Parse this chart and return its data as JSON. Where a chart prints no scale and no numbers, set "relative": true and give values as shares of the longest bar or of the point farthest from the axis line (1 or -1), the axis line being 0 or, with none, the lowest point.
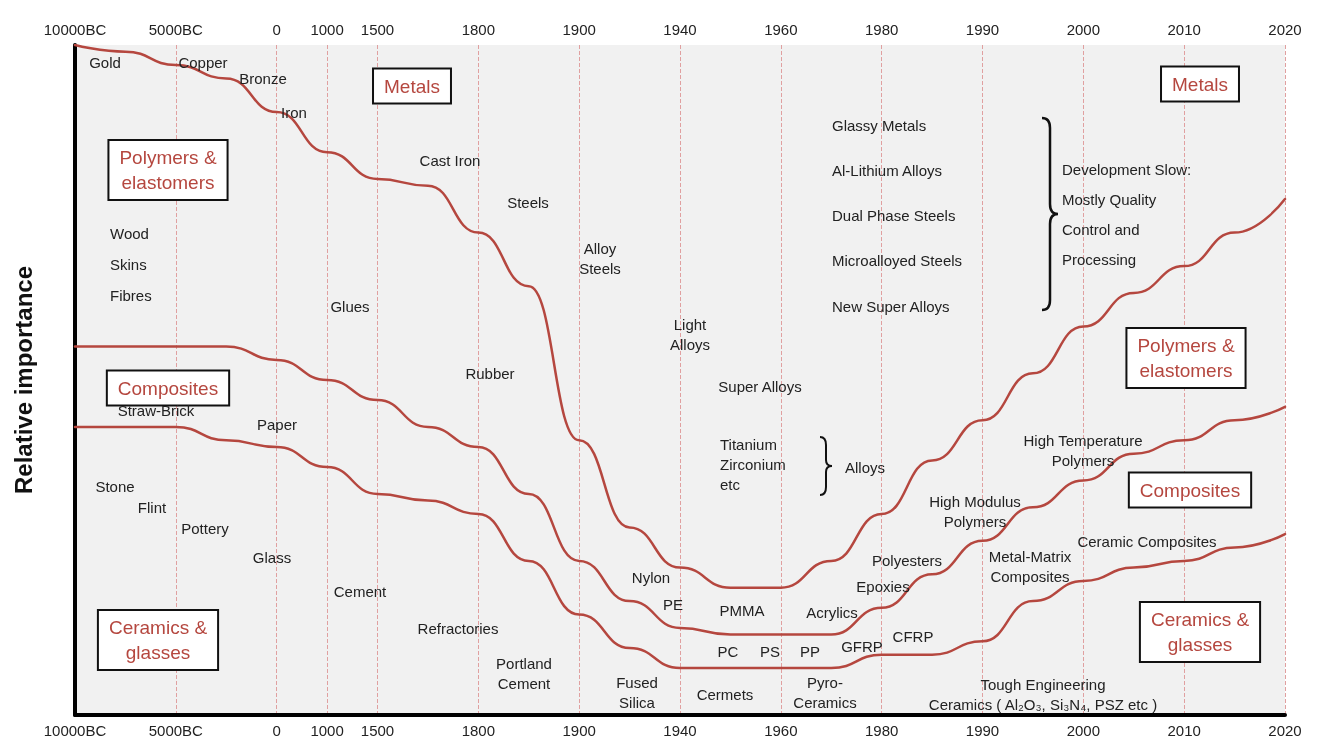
{
  "chart_data": {
    "type": "line",
    "relative": true,
    "ylabel": "Relative importance",
    "categories": [
      "10000BC",
      null,
      "5000BC",
      null,
      "0",
      "1000",
      "1500",
      null,
      "1800",
      null,
      "1900",
      null,
      "1940",
      null,
      "1960",
      null,
      "1980",
      null,
      "1990",
      null,
      "2000",
      null,
      "2010",
      null,
      "2020"
    ],
    "series": [
      {
        "color": "#b5473f",
        "values": [
          1.0,
          0.99,
          0.97,
          0.95,
          0.9,
          0.84,
          0.8,
          0.79,
          0.72,
          0.64,
          0.41,
          0.28,
          0.22,
          0.19,
          0.19,
          0.23,
          0.3,
          0.38,
          0.44,
          0.51,
          0.58,
          0.63,
          0.67,
          0.72,
          0.77
        ]
      },
      {
        "color": "#b5473f",
        "values": [
          0.55,
          0.55,
          0.55,
          0.55,
          0.53,
          0.5,
          0.47,
          0.43,
          0.4,
          0.33,
          0.23,
          0.17,
          0.13,
          0.12,
          0.12,
          0.12,
          0.16,
          0.21,
          0.26,
          0.31,
          0.35,
          0.39,
          0.41,
          0.44,
          0.46
        ]
      },
      {
        "color": "#b5473f",
        "values": [
          0.43,
          0.43,
          0.43,
          0.41,
          0.4,
          0.37,
          0.33,
          0.32,
          0.3,
          0.23,
          0.15,
          0.1,
          0.07,
          0.07,
          0.07,
          0.07,
          0.09,
          0.09,
          0.11,
          0.17,
          0.2,
          0.22,
          0.23,
          0.25,
          0.27
        ]
      }
    ],
    "grid": "x",
    "marker": "none",
    "line_style": "solid",
    "annotations": [
      "Metals",
      "Metals",
      "Polymers &\nelastomers",
      "Polymers &\nelastomers",
      "Composites",
      "Composites",
      "Ceramics &\nglasses",
      "Ceramics &\nglasses",
      "Gold",
      "Copper",
      "Bronze",
      "Iron",
      "Cast Iron",
      "Steels",
      "Alloy\nSteels",
      "Light\nAlloys",
      "Super Alloys",
      "Titanium\nZirconium\netc",
      "Alloys",
      "Glassy Metals",
      "Al-Lithium Alloys",
      "Dual Phase Steels",
      "Microalloyed Steels",
      "New Super Alloys",
      "Development Slow:\nMostly Quality\nControl and\nProcessing",
      "Wood\nSkins\nFibres",
      "Glues",
      "Rubber",
      "Straw-Brick",
      "Paper",
      "Stone",
      "Flint",
      "Pottery",
      "Glass",
      "Cement",
      "Refractories",
      "Portland\nCement",
      "Fused\nSilica",
      "Cermets",
      "Pyro-\nCeramics",
      "Nylon",
      "PE",
      "PMMA",
      "PC",
      "PS",
      "Acrylics",
      "PP",
      "Polyesters",
      "Epoxies",
      "High Temperature\nPolymers",
      "High Modulus\nPolymers",
      "Ceramic Composites",
      "Metal-Matrix\nComposites",
      "CFRP",
      "GFRP",
      "Tough Engineering\nCeramics ( Al₂O₃, Si₃N₄, PSZ etc )"
    ]
  }
}
